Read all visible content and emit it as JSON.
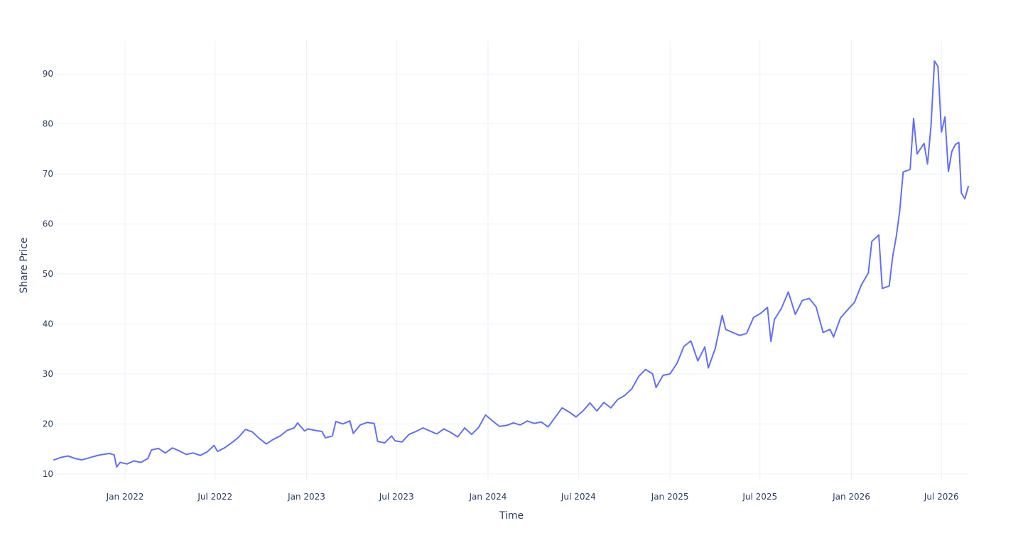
{
  "chart_data": {
    "type": "line",
    "title": "",
    "xlabel": "Time",
    "ylabel": "Share Price",
    "grid": true,
    "legend": "none",
    "x_type": "date",
    "xlim": [
      "2021-08-11",
      "2026-08-24"
    ],
    "ylim": [
      8.7,
      96.7
    ],
    "x_ticks": [
      {
        "date": "2022-01-01",
        "label": "Jan 2022"
      },
      {
        "date": "2022-07-01",
        "label": "Jul 2022"
      },
      {
        "date": "2023-01-01",
        "label": "Jan 2023"
      },
      {
        "date": "2023-07-01",
        "label": "Jul 2023"
      },
      {
        "date": "2024-01-01",
        "label": "Jan 2024"
      },
      {
        "date": "2024-07-01",
        "label": "Jul 2024"
      },
      {
        "date": "2025-01-01",
        "label": "Jan 2025"
      },
      {
        "date": "2025-07-01",
        "label": "Jul 2025"
      },
      {
        "date": "2026-01-01",
        "label": "Jan 2026"
      },
      {
        "date": "2026-07-01",
        "label": "Jul 2026"
      }
    ],
    "y_ticks": [
      {
        "value": 10,
        "label": "10"
      },
      {
        "value": 20,
        "label": "20"
      },
      {
        "value": 30,
        "label": "30"
      },
      {
        "value": 40,
        "label": "40"
      },
      {
        "value": 50,
        "label": "50"
      },
      {
        "value": 60,
        "label": "60"
      },
      {
        "value": 70,
        "label": "70"
      },
      {
        "value": 80,
        "label": "80"
      },
      {
        "value": 90,
        "label": "90"
      }
    ],
    "series": [
      {
        "color": "#636efa",
        "points": [
          [
            "2021-08-11",
            12.8
          ],
          [
            "2021-08-25",
            13.3
          ],
          [
            "2021-09-08",
            13.6
          ],
          [
            "2021-09-22",
            13.1
          ],
          [
            "2021-10-06",
            12.8
          ],
          [
            "2021-10-20",
            13.2
          ],
          [
            "2021-11-03",
            13.6
          ],
          [
            "2021-11-17",
            13.9
          ],
          [
            "2021-12-01",
            14.1
          ],
          [
            "2021-12-10",
            13.8
          ],
          [
            "2021-12-15",
            11.4
          ],
          [
            "2021-12-22",
            12.3
          ],
          [
            "2022-01-05",
            12.0
          ],
          [
            "2022-01-19",
            12.6
          ],
          [
            "2022-02-02",
            12.3
          ],
          [
            "2022-02-16",
            13.1
          ],
          [
            "2022-02-23",
            14.8
          ],
          [
            "2022-03-09",
            15.1
          ],
          [
            "2022-03-23",
            14.2
          ],
          [
            "2022-04-06",
            15.2
          ],
          [
            "2022-04-20",
            14.6
          ],
          [
            "2022-05-04",
            13.9
          ],
          [
            "2022-05-18",
            14.2
          ],
          [
            "2022-06-01",
            13.7
          ],
          [
            "2022-06-15",
            14.4
          ],
          [
            "2022-06-29",
            15.7
          ],
          [
            "2022-07-06",
            14.5
          ],
          [
            "2022-07-20",
            15.2
          ],
          [
            "2022-08-03",
            16.2
          ],
          [
            "2022-08-17",
            17.3
          ],
          [
            "2022-08-31",
            18.9
          ],
          [
            "2022-09-14",
            18.4
          ],
          [
            "2022-09-28",
            17.1
          ],
          [
            "2022-10-12",
            16.0
          ],
          [
            "2022-10-26",
            16.9
          ],
          [
            "2022-11-09",
            17.6
          ],
          [
            "2022-11-23",
            18.7
          ],
          [
            "2022-12-07",
            19.2
          ],
          [
            "2022-12-14",
            20.2
          ],
          [
            "2022-12-28",
            18.6
          ],
          [
            "2023-01-04",
            19.0
          ],
          [
            "2023-01-18",
            18.7
          ],
          [
            "2023-02-01",
            18.5
          ],
          [
            "2023-02-08",
            17.2
          ],
          [
            "2023-02-22",
            17.6
          ],
          [
            "2023-03-01",
            20.5
          ],
          [
            "2023-03-15",
            20.0
          ],
          [
            "2023-03-29",
            20.6
          ],
          [
            "2023-04-05",
            18.1
          ],
          [
            "2023-04-19",
            19.8
          ],
          [
            "2023-05-03",
            20.3
          ],
          [
            "2023-05-17",
            20.1
          ],
          [
            "2023-05-24",
            16.5
          ],
          [
            "2023-06-07",
            16.2
          ],
          [
            "2023-06-21",
            17.6
          ],
          [
            "2023-06-28",
            16.6
          ],
          [
            "2023-07-12",
            16.4
          ],
          [
            "2023-07-26",
            17.9
          ],
          [
            "2023-08-09",
            18.5
          ],
          [
            "2023-08-23",
            19.2
          ],
          [
            "2023-09-06",
            18.6
          ],
          [
            "2023-09-20",
            18.0
          ],
          [
            "2023-10-04",
            19.0
          ],
          [
            "2023-10-18",
            18.3
          ],
          [
            "2023-11-01",
            17.4
          ],
          [
            "2023-11-15",
            19.2
          ],
          [
            "2023-11-29",
            17.9
          ],
          [
            "2023-12-13",
            19.3
          ],
          [
            "2023-12-27",
            21.8
          ],
          [
            "2024-01-10",
            20.6
          ],
          [
            "2024-01-24",
            19.5
          ],
          [
            "2024-02-07",
            19.7
          ],
          [
            "2024-02-21",
            20.2
          ],
          [
            "2024-03-06",
            19.8
          ],
          [
            "2024-03-20",
            20.6
          ],
          [
            "2024-04-03",
            20.1
          ],
          [
            "2024-04-17",
            20.4
          ],
          [
            "2024-05-01",
            19.4
          ],
          [
            "2024-05-15",
            21.3
          ],
          [
            "2024-05-29",
            23.2
          ],
          [
            "2024-06-12",
            22.4
          ],
          [
            "2024-06-26",
            21.4
          ],
          [
            "2024-07-10",
            22.6
          ],
          [
            "2024-07-24",
            24.2
          ],
          [
            "2024-08-07",
            22.6
          ],
          [
            "2024-08-21",
            24.3
          ],
          [
            "2024-09-04",
            23.2
          ],
          [
            "2024-09-18",
            24.9
          ],
          [
            "2024-10-02",
            25.7
          ],
          [
            "2024-10-16",
            27.0
          ],
          [
            "2024-10-30",
            29.5
          ],
          [
            "2024-11-13",
            30.9
          ],
          [
            "2024-11-27",
            30.0
          ],
          [
            "2024-12-04",
            27.3
          ],
          [
            "2024-12-18",
            29.7
          ],
          [
            "2025-01-01",
            30.0
          ],
          [
            "2025-01-15",
            32.1
          ],
          [
            "2025-01-29",
            35.5
          ],
          [
            "2025-02-12",
            36.6
          ],
          [
            "2025-02-26",
            32.6
          ],
          [
            "2025-03-12",
            35.4
          ],
          [
            "2025-03-19",
            31.2
          ],
          [
            "2025-04-02",
            35.1
          ],
          [
            "2025-04-16",
            41.7
          ],
          [
            "2025-04-23",
            38.9
          ],
          [
            "2025-05-07",
            38.3
          ],
          [
            "2025-05-21",
            37.7
          ],
          [
            "2025-06-04",
            38.1
          ],
          [
            "2025-06-18",
            41.3
          ],
          [
            "2025-07-02",
            42.1
          ],
          [
            "2025-07-16",
            43.3
          ],
          [
            "2025-07-23",
            36.5
          ],
          [
            "2025-07-30",
            40.9
          ],
          [
            "2025-08-13",
            43.1
          ],
          [
            "2025-08-27",
            46.4
          ],
          [
            "2025-09-10",
            41.9
          ],
          [
            "2025-09-24",
            44.7
          ],
          [
            "2025-10-08",
            45.1
          ],
          [
            "2025-10-22",
            43.4
          ],
          [
            "2025-11-05",
            38.3
          ],
          [
            "2025-11-19",
            38.9
          ],
          [
            "2025-11-26",
            37.4
          ],
          [
            "2025-12-10",
            41.2
          ],
          [
            "2025-12-24",
            42.8
          ],
          [
            "2026-01-07",
            44.3
          ],
          [
            "2026-01-21",
            47.8
          ],
          [
            "2026-02-04",
            50.2
          ],
          [
            "2026-02-11",
            56.5
          ],
          [
            "2026-02-25",
            57.8
          ],
          [
            "2026-03-04",
            47.1
          ],
          [
            "2026-03-18",
            47.6
          ],
          [
            "2026-03-25",
            53.5
          ],
          [
            "2026-04-01",
            57.4
          ],
          [
            "2026-04-08",
            62.5
          ],
          [
            "2026-04-15",
            70.4
          ],
          [
            "2026-04-29",
            70.9
          ],
          [
            "2026-05-06",
            81.1
          ],
          [
            "2026-05-13",
            74.0
          ],
          [
            "2026-05-27",
            76.1
          ],
          [
            "2026-06-03",
            72.0
          ],
          [
            "2026-06-10",
            79.6
          ],
          [
            "2026-06-17",
            92.6
          ],
          [
            "2026-06-24",
            91.5
          ],
          [
            "2026-07-01",
            78.4
          ],
          [
            "2026-07-08",
            81.4
          ],
          [
            "2026-07-15",
            70.5
          ],
          [
            "2026-07-22",
            74.5
          ],
          [
            "2026-07-29",
            75.9
          ],
          [
            "2026-08-05",
            76.3
          ],
          [
            "2026-08-10",
            66.2
          ],
          [
            "2026-08-17",
            65.0
          ],
          [
            "2026-08-24",
            67.5
          ]
        ]
      }
    ]
  }
}
